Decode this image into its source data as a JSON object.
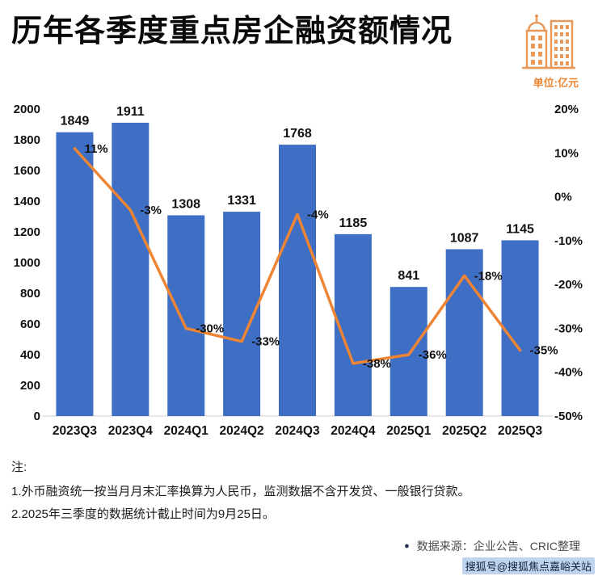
{
  "page": {
    "title": "历年各季度重点房企融资额情况",
    "unit_label": "单位:亿元",
    "watermark": "搜狐号@搜狐焦点嘉峪关站"
  },
  "notes": {
    "heading": "注:",
    "lines": [
      "1.外币融资统一按当月月末汇率换算为人民币，监测数据不含开发贷、一般银行贷款。",
      "2.2025年三季度的数据统计截止时间为9月25日。"
    ],
    "source_bullet": "●",
    "source": "数据来源：企业公告、CRIC整理"
  },
  "chart_data": {
    "type": "bar",
    "title": "历年各季度重点房企融资额情况",
    "categories": [
      "2023Q3",
      "2023Q4",
      "2024Q1",
      "2024Q2",
      "2024Q3",
      "2024Q4",
      "2025Q1",
      "2025Q2",
      "2025Q3"
    ],
    "series": [
      {
        "name": "bar-series",
        "type": "bar",
        "axis": "left",
        "color": "#3f6fc4",
        "values": [
          1849,
          1911,
          1308,
          1331,
          1768,
          1185,
          841,
          1087,
          1145
        ]
      },
      {
        "name": "line-series",
        "type": "line",
        "axis": "right",
        "color": "#ee8534",
        "values": [
          11,
          -3,
          -30,
          -33,
          -4,
          -38,
          -36,
          -18,
          -35
        ],
        "labels": [
          "11%",
          "-3%",
          "-30%",
          "-33%",
          "-4%",
          "-38%",
          "-36%",
          "-18%",
          "-35%"
        ]
      }
    ],
    "left_axis": {
      "min": 0,
      "max": 2000,
      "step": 200,
      "ticks": [
        "2000",
        "1800",
        "1600",
        "1400",
        "1200",
        "1000",
        "800",
        "600",
        "400",
        "200",
        "0"
      ]
    },
    "right_axis": {
      "min": -50,
      "max": 20,
      "step": 10,
      "ticks": [
        "20%",
        "10%",
        "0%",
        "-10%",
        "-20%",
        "-30%",
        "-40%",
        "-50%"
      ]
    },
    "grid": false,
    "legend": "none"
  }
}
